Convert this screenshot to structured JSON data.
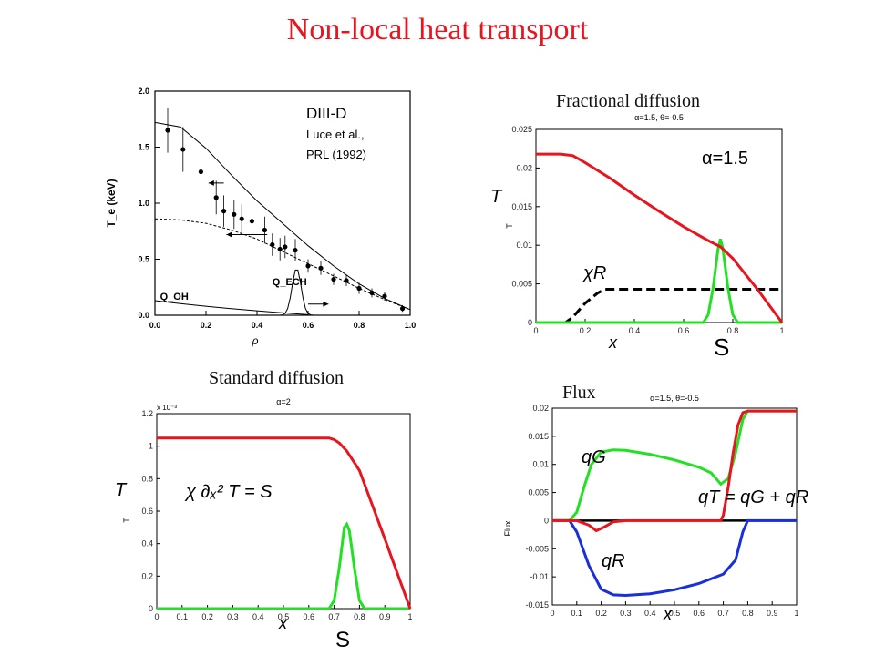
{
  "slide": {
    "title": "Non-local heat transport",
    "captions": {
      "fractional": "Fractional diffusion",
      "standard": "Standard diffusion",
      "flux": "Flux"
    }
  },
  "chart_data": [
    {
      "id": "diiid",
      "type": "scatter",
      "annotation_title": "DIII-D",
      "annotation_ref1": "Luce et al.,",
      "annotation_ref2": "PRL (1992)",
      "xlabel": "ρ",
      "ylabel": "T_e (keV)",
      "xlim": [
        0,
        1.0
      ],
      "ylim": [
        0,
        2.0
      ],
      "x_ticks": [
        "0.0",
        "0.2",
        "0.4",
        "0.6",
        "0.8",
        "1.0"
      ],
      "y_ticks": [
        "0.0",
        "0.5",
        "1.0",
        "1.5",
        "2.0"
      ],
      "labels": {
        "qech": "Q_ECH",
        "qoh": "Q_OH"
      },
      "series": [
        {
          "values_x": [
            0.05,
            0.11,
            0.18,
            0.24,
            0.27,
            0.31,
            0.34,
            0.38,
            0.43,
            0.46,
            0.49,
            0.51,
            0.55,
            0.6,
            0.65,
            0.7,
            0.75,
            0.8,
            0.85,
            0.9,
            0.97
          ],
          "values_y": [
            1.65,
            1.48,
            1.28,
            1.05,
            0.93,
            0.9,
            0.86,
            0.84,
            0.76,
            0.63,
            0.59,
            0.61,
            0.58,
            0.44,
            0.42,
            0.32,
            0.31,
            0.24,
            0.2,
            0.17,
            0.06
          ],
          "errors": [
            0.2,
            0.2,
            0.2,
            0.15,
            0.14,
            0.13,
            0.13,
            0.12,
            0.12,
            0.1,
            0.1,
            0.1,
            0.1,
            0.06,
            0.06,
            0.05,
            0.05,
            0.05,
            0.04,
            0.04,
            0.03
          ]
        },
        {
          "x": [
            0,
            0.1,
            0.2,
            0.3,
            0.4,
            0.5,
            0.6,
            0.7,
            0.8,
            0.9,
            1.0
          ],
          "y": [
            1.72,
            1.68,
            1.49,
            1.25,
            1.02,
            0.82,
            0.62,
            0.44,
            0.28,
            0.15,
            0.05
          ]
        },
        {
          "x": [
            0,
            0.1,
            0.2,
            0.3,
            0.4,
            0.5,
            0.6,
            0.7,
            0.8,
            0.9,
            1.0
          ],
          "y": [
            0.86,
            0.85,
            0.82,
            0.76,
            0.68,
            0.57,
            0.46,
            0.35,
            0.24,
            0.14,
            0.05
          ]
        }
      ]
    },
    {
      "id": "fractional",
      "type": "line",
      "header": "α=1.5, θ=-0.5",
      "alpha_label": "α=1.5",
      "xlabel": "x",
      "ylabel": "T",
      "big_ylabel": "T",
      "source_label": "S",
      "chi_label": "χR",
      "xlim": [
        0,
        1
      ],
      "ylim": [
        0,
        0.025
      ],
      "x_ticks": [
        "0",
        "0.2",
        "0.4",
        "0.6",
        "0.8",
        "1"
      ],
      "y_ticks": [
        "0",
        "0.005",
        "0.01",
        "0.015",
        "0.02",
        "0.025"
      ],
      "series": [
        {
          "x": [
            0,
            0.1,
            0.15,
            0.2,
            0.3,
            0.4,
            0.5,
            0.6,
            0.7,
            0.75,
            0.8,
            0.9,
            1.0
          ],
          "y": [
            0.0218,
            0.0218,
            0.0216,
            0.0207,
            0.0187,
            0.0165,
            0.0144,
            0.0124,
            0.0106,
            0.0098,
            0.0083,
            0.0043,
            0.0
          ]
        },
        {
          "x": [
            0,
            0.68,
            0.7,
            0.72,
            0.74,
            0.75,
            0.76,
            0.78,
            0.8,
            0.82,
            1.0
          ],
          "y": [
            0,
            0,
            0.001,
            0.0045,
            0.0095,
            0.0108,
            0.0095,
            0.0045,
            0.001,
            0,
            0
          ]
        },
        {
          "x": [
            0,
            0.12,
            0.15,
            0.2,
            0.25,
            0.28,
            0.3,
            1.0
          ],
          "y": [
            0,
            0,
            0.0007,
            0.0025,
            0.0038,
            0.0043,
            0.0043,
            0.0043
          ]
        }
      ]
    },
    {
      "id": "standard",
      "type": "line",
      "header": "α=2",
      "exponent": "x 10⁻³",
      "xlabel": "x",
      "ylabel": "T",
      "big_ylabel": "T",
      "equation": "χ ∂ₓ² T = S",
      "source_label": "S",
      "xlim": [
        0,
        1
      ],
      "ylim": [
        0,
        1.2
      ],
      "x_ticks": [
        "0",
        "0.1",
        "0.2",
        "0.3",
        "0.4",
        "0.5",
        "0.6",
        "0.7",
        "0.8",
        "0.9",
        "1"
      ],
      "y_ticks": [
        "0",
        "0.2",
        "0.4",
        "0.6",
        "0.8",
        "1",
        "1.2"
      ],
      "series": [
        {
          "x": [
            0,
            0.68,
            0.7,
            0.72,
            0.75,
            0.8,
            0.9,
            1.0
          ],
          "y": [
            1.05,
            1.05,
            1.04,
            1.02,
            0.97,
            0.85,
            0.43,
            0
          ]
        },
        {
          "x": [
            0,
            0.68,
            0.7,
            0.72,
            0.74,
            0.75,
            0.76,
            0.78,
            0.8,
            0.82,
            1.0
          ],
          "y": [
            0,
            0,
            0.05,
            0.25,
            0.5,
            0.52,
            0.48,
            0.25,
            0.05,
            0,
            0
          ]
        }
      ]
    },
    {
      "id": "flux",
      "type": "line",
      "header": "α=1.5, θ=-0.5",
      "xlabel": "x",
      "ylabel": "Flux",
      "labels": {
        "qg": "qG",
        "qr": "qR",
        "qt": "qT = qG + qR"
      },
      "xlim": [
        0,
        1
      ],
      "ylim": [
        -0.015,
        0.02
      ],
      "x_ticks": [
        "0",
        "0.1",
        "0.2",
        "0.3",
        "0.4",
        "0.5",
        "0.6",
        "0.7",
        "0.8",
        "0.9",
        "1"
      ],
      "y_ticks": [
        "-0.015",
        "-0.01",
        "-0.005",
        "0",
        "0.005",
        "0.01",
        "0.015",
        "0.02"
      ],
      "series": [
        {
          "x": [
            0,
            0.07,
            0.1,
            0.13,
            0.16,
            0.2,
            0.25,
            0.3,
            0.4,
            0.5,
            0.6,
            0.65,
            0.69,
            0.72,
            0.75,
            0.78,
            0.8,
            1.0
          ],
          "y": [
            0,
            0,
            0.0015,
            0.006,
            0.01,
            0.0122,
            0.0126,
            0.0125,
            0.0118,
            0.0108,
            0.0095,
            0.0085,
            0.0065,
            0.0075,
            0.012,
            0.018,
            0.0195,
            0.0195
          ]
        },
        {
          "x": [
            0,
            0.07,
            0.1,
            0.15,
            0.2,
            0.25,
            0.3,
            0.4,
            0.5,
            0.6,
            0.7,
            0.75,
            0.78,
            0.8,
            1.0
          ],
          "y": [
            0,
            0,
            -0.002,
            -0.008,
            -0.0122,
            -0.0132,
            -0.0133,
            -0.013,
            -0.0123,
            -0.0112,
            -0.0095,
            -0.007,
            -0.002,
            0,
            0
          ]
        },
        {
          "x": [
            0,
            0.1,
            0.15,
            0.18,
            0.21,
            0.25,
            0.3,
            0.69,
            0.7,
            0.72,
            0.74,
            0.76,
            0.78,
            0.8,
            1.0
          ],
          "y": [
            0,
            0,
            -0.0008,
            -0.0018,
            -0.0012,
            -0.0002,
            0,
            0,
            0.001,
            0.006,
            0.012,
            0.017,
            0.0192,
            0.0195,
            0.0195
          ]
        },
        {
          "x": [
            0,
            1.0
          ],
          "y": [
            0,
            0
          ]
        }
      ]
    }
  ],
  "colors": {
    "title": "#e8141e",
    "red": "#e8141e",
    "green": "#22e022",
    "blue": "#1a2fdc",
    "black": "#000000"
  }
}
